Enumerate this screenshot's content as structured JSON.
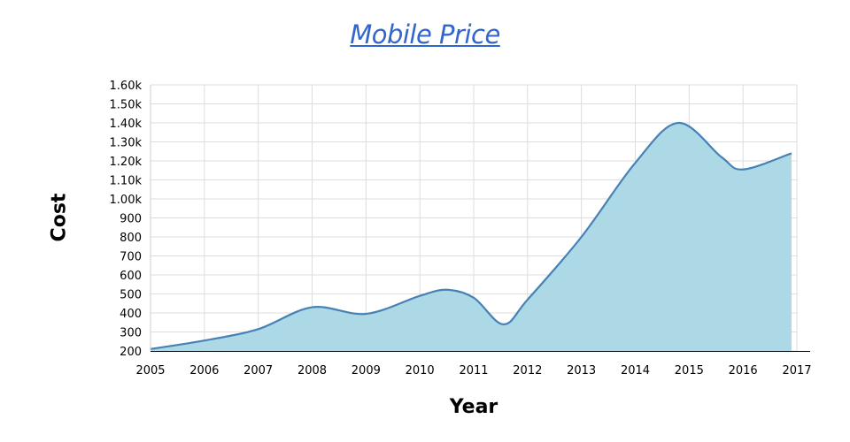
{
  "chart_data": {
    "type": "area",
    "title": "Mobile Price",
    "xlabel": "Year",
    "ylabel": "Cost",
    "x": [
      2005,
      2006,
      2007,
      2008,
      2009,
      2010,
      2011,
      2012,
      2013,
      2014,
      2015,
      2016,
      2017
    ],
    "x_tick_labels": [
      "2005",
      "2006",
      "2007",
      "2008",
      "2009",
      "2010",
      "2011",
      "2012",
      "2013",
      "2014",
      "2015",
      "2016",
      "2017"
    ],
    "series": [
      {
        "points": [
          [
            2005.0,
            210
          ],
          [
            2006.0,
            255
          ],
          [
            2007.0,
            315
          ],
          [
            2008.0,
            430
          ],
          [
            2009.0,
            395
          ],
          [
            2010.0,
            490
          ],
          [
            2010.5,
            522
          ],
          [
            2011.0,
            480
          ],
          [
            2011.55,
            340
          ],
          [
            2012.0,
            470
          ],
          [
            2013.0,
            800
          ],
          [
            2014.0,
            1190
          ],
          [
            2014.8,
            1400
          ],
          [
            2015.6,
            1220
          ],
          [
            2016.0,
            1155
          ],
          [
            2016.9,
            1240
          ]
        ]
      }
    ],
    "ylim": [
      200,
      1600
    ],
    "xlim": [
      2005,
      2017
    ],
    "y_ticks": [
      200,
      300,
      400,
      500,
      600,
      700,
      800,
      900,
      1000,
      1100,
      1200,
      1300,
      1400,
      1500,
      1600
    ],
    "y_tick_labels": [
      "200",
      "300",
      "400",
      "500",
      "600",
      "700",
      "800",
      "900",
      "1.00k",
      "1.10k",
      "1.20k",
      "1.30k",
      "1.40k",
      "1.50k",
      "1.60k"
    ],
    "grid": true,
    "colors": {
      "fill": "#add8e6",
      "line": "#4682b4",
      "grid": "#dddddd",
      "title": "#3366cc"
    }
  }
}
